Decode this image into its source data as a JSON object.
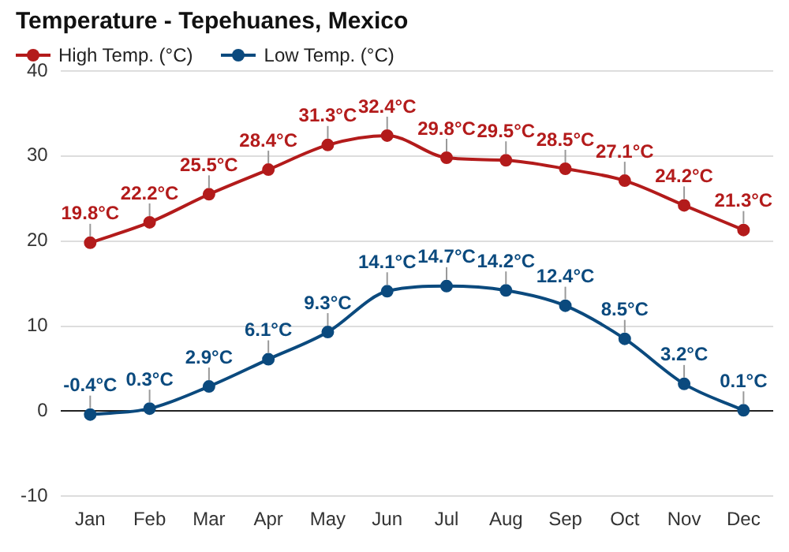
{
  "chart_data": {
    "type": "line",
    "title": "Temperature - Tepehuanes, Mexico",
    "categories": [
      "Jan",
      "Feb",
      "Mar",
      "Apr",
      "May",
      "Jun",
      "Jul",
      "Aug",
      "Sep",
      "Oct",
      "Nov",
      "Dec"
    ],
    "series": [
      {
        "name": "High Temp. (°C)",
        "color": "#b31b1b",
        "values": [
          19.8,
          22.2,
          25.5,
          28.4,
          31.3,
          32.4,
          29.8,
          29.5,
          28.5,
          27.1,
          24.2,
          21.3
        ],
        "value_labels": [
          "19.8°C",
          "22.2°C",
          "25.5°C",
          "28.4°C",
          "31.3°C",
          "32.4°C",
          "29.8°C",
          "29.5°C",
          "28.5°C",
          "27.1°C",
          "24.2°C",
          "21.3°C"
        ]
      },
      {
        "name": "Low Temp. (°C)",
        "color": "#0b4a7e",
        "values": [
          -0.4,
          0.3,
          2.9,
          6.1,
          9.3,
          14.1,
          14.7,
          14.2,
          12.4,
          8.5,
          3.2,
          0.1
        ],
        "value_labels": [
          "-0.4°C",
          "0.3°C",
          "2.9°C",
          "6.1°C",
          "9.3°C",
          "14.1°C",
          "14.7°C",
          "14.2°C",
          "12.4°C",
          "8.5°C",
          "3.2°C",
          "0.1°C"
        ]
      }
    ],
    "ylim": [
      -10,
      40
    ],
    "yticks": [
      -10,
      0,
      10,
      20,
      30,
      40
    ],
    "grid": "y",
    "legend": "top left",
    "marker": "circle",
    "line_style": "solid"
  }
}
